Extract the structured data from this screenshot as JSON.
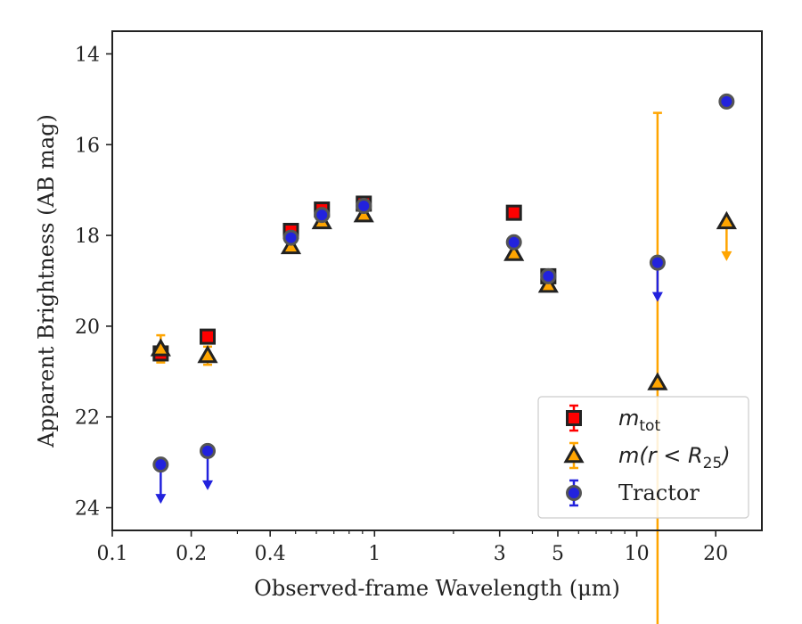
{
  "chart_data": {
    "type": "scatter",
    "xlabel": "Observed-frame Wavelength (μm)",
    "ylabel": "Apparent Brightness (AB mag)",
    "xscale": "log",
    "xlim": [
      0.1,
      30
    ],
    "ylim": [
      24.5,
      13.5
    ],
    "y_inverted": true,
    "xticks": [
      0.1,
      0.2,
      0.4,
      1,
      3,
      5,
      10,
      20
    ],
    "xtick_labels": [
      "0.1",
      "0.2",
      "0.4",
      "1",
      "3",
      "5",
      "10",
      "20"
    ],
    "yticks": [
      14,
      16,
      18,
      20,
      22,
      24
    ],
    "ytick_labels": [
      "14",
      "16",
      "18",
      "20",
      "22",
      "24"
    ],
    "legend_position": "bottom-right",
    "series": [
      {
        "name": "m_tot",
        "legend_main": "m",
        "legend_sub": "tot",
        "marker": "square",
        "color": "#ff0000",
        "edge": "#222222",
        "points": [
          {
            "x": 0.153,
            "y": 20.6,
            "err": 0.1
          },
          {
            "x": 0.231,
            "y": 20.23,
            "err": 0.05
          },
          {
            "x": 0.48,
            "y": 17.9,
            "err": 0.05
          },
          {
            "x": 0.63,
            "y": 17.43,
            "err": 0.05
          },
          {
            "x": 0.91,
            "y": 17.3,
            "err": 0.05
          },
          {
            "x": 3.4,
            "y": 17.5,
            "err": 0.03
          },
          {
            "x": 4.6,
            "y": 18.9,
            "err": 0.05
          }
        ]
      },
      {
        "name": "m(r < R25)",
        "legend_main": "m(r < R",
        "legend_sub": "25",
        "legend_tail": ")",
        "marker": "triangle",
        "color": "#ffa500",
        "edge": "#222222",
        "points": [
          {
            "x": 0.153,
            "y": 20.5,
            "err": 0.3
          },
          {
            "x": 0.231,
            "y": 20.65,
            "err": 0.2
          },
          {
            "x": 0.48,
            "y": 18.25,
            "err": 0.05
          },
          {
            "x": 0.63,
            "y": 17.7,
            "err": 0.05
          },
          {
            "x": 0.91,
            "y": 17.55,
            "err": 0.05
          },
          {
            "x": 3.4,
            "y": 18.4,
            "err": 0.05
          },
          {
            "x": 4.6,
            "y": 19.1,
            "err": 0.05
          },
          {
            "x": 12.0,
            "y": 21.25,
            "err_low": 5.95,
            "err_high": 5.95
          },
          {
            "x": 22.0,
            "y": 17.7,
            "upper_limit": true
          }
        ]
      },
      {
        "name": "Tractor",
        "legend_main": "Tractor",
        "marker": "circle",
        "color": "#2222dd",
        "edge": "#555555",
        "points": [
          {
            "x": 0.153,
            "y": 23.05,
            "upper_limit": true
          },
          {
            "x": 0.231,
            "y": 22.75,
            "upper_limit": true
          },
          {
            "x": 0.48,
            "y": 18.05,
            "err": 0.05
          },
          {
            "x": 0.63,
            "y": 17.55,
            "err": 0.05
          },
          {
            "x": 0.91,
            "y": 17.35,
            "err": 0.05
          },
          {
            "x": 3.4,
            "y": 18.15,
            "err": 0.03
          },
          {
            "x": 4.6,
            "y": 18.9,
            "err": 0.05
          },
          {
            "x": 12.0,
            "y": 18.6,
            "upper_limit": true
          },
          {
            "x": 22.0,
            "y": 15.05,
            "err": 0.05
          }
        ]
      }
    ]
  }
}
